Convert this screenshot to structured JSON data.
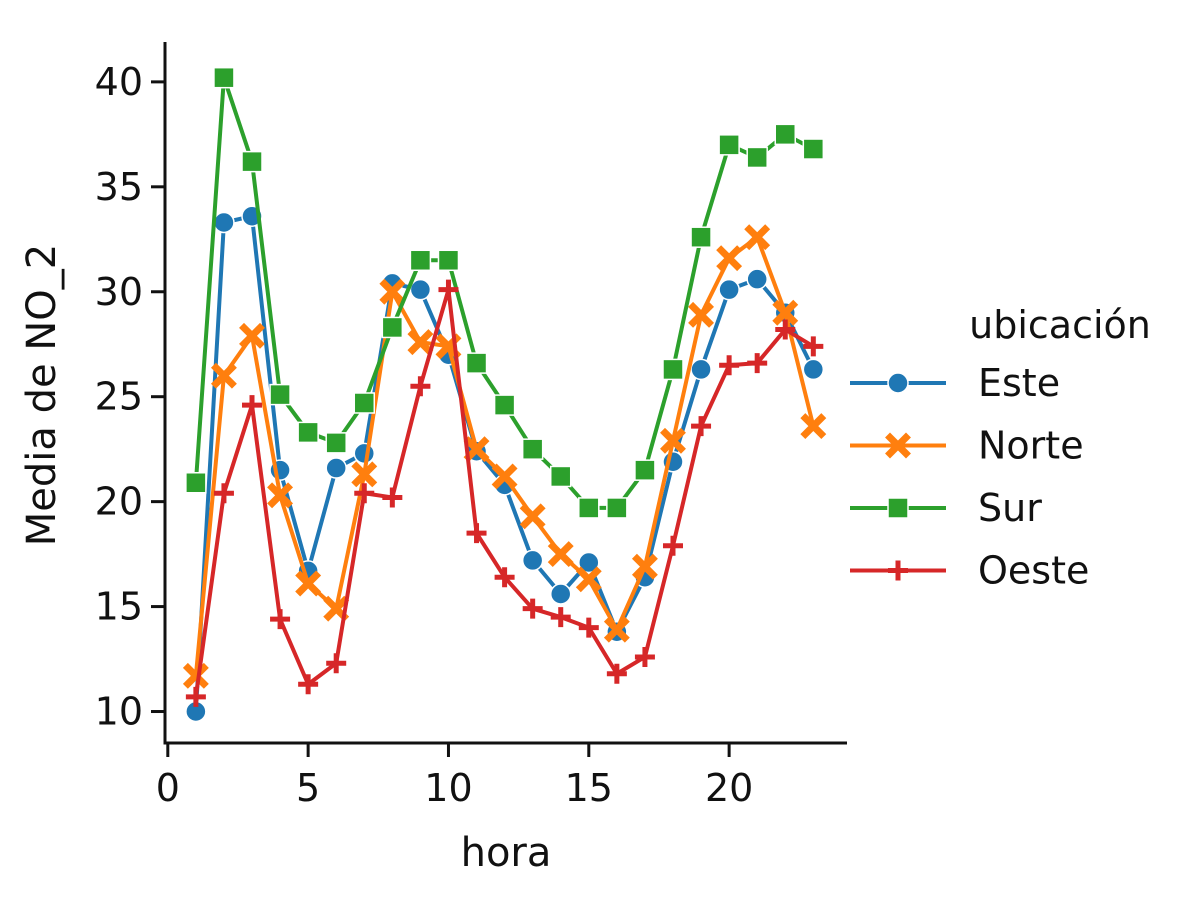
{
  "chart_data": {
    "type": "line",
    "title": "",
    "xlabel": "hora",
    "ylabel": "Media de NO_2",
    "xlim": [
      -0.1,
      24.2
    ],
    "ylim": [
      8.5,
      41.9
    ],
    "xticks": [
      0,
      5,
      10,
      15,
      20
    ],
    "yticks": [
      10,
      15,
      20,
      25,
      30,
      35,
      40
    ],
    "grid": false,
    "legend": {
      "title": "ubicación",
      "placement": "center-right"
    },
    "x": [
      1,
      2,
      3,
      4,
      5,
      6,
      7,
      8,
      9,
      10,
      11,
      12,
      13,
      14,
      15,
      16,
      17,
      18,
      19,
      20,
      21,
      22,
      23
    ],
    "series": [
      {
        "name": "Este",
        "color": "#1f77b4",
        "marker": "circle",
        "values": [
          10.0,
          33.3,
          33.6,
          21.5,
          16.7,
          21.6,
          22.3,
          30.4,
          30.1,
          27.0,
          22.4,
          20.8,
          17.2,
          15.6,
          17.1,
          13.8,
          16.4,
          21.9,
          26.3,
          30.1,
          30.6,
          29.0,
          26.3
        ]
      },
      {
        "name": "Norte",
        "color": "#ff7f0e",
        "marker": "x",
        "values": [
          11.7,
          26.0,
          27.9,
          20.3,
          16.1,
          14.9,
          21.3,
          30.0,
          27.6,
          27.4,
          22.5,
          21.2,
          19.3,
          17.5,
          16.3,
          13.9,
          16.9,
          22.9,
          28.9,
          31.6,
          32.6,
          29.0,
          23.6
        ]
      },
      {
        "name": "Sur",
        "color": "#2ca02c",
        "marker": "square",
        "values": [
          20.9,
          40.2,
          36.2,
          25.1,
          23.3,
          22.8,
          24.7,
          28.3,
          31.5,
          31.5,
          26.6,
          24.6,
          22.5,
          21.2,
          19.7,
          19.7,
          21.5,
          26.3,
          32.6,
          37.0,
          36.4,
          37.5,
          36.8
        ]
      },
      {
        "name": "Oeste",
        "color": "#d62728",
        "marker": "plus",
        "values": [
          10.7,
          20.4,
          24.6,
          14.4,
          11.3,
          12.3,
          20.4,
          20.2,
          25.5,
          30.1,
          18.5,
          16.4,
          14.9,
          14.5,
          14.0,
          11.8,
          12.6,
          17.9,
          23.6,
          26.5,
          26.6,
          28.2,
          27.4
        ]
      }
    ]
  }
}
